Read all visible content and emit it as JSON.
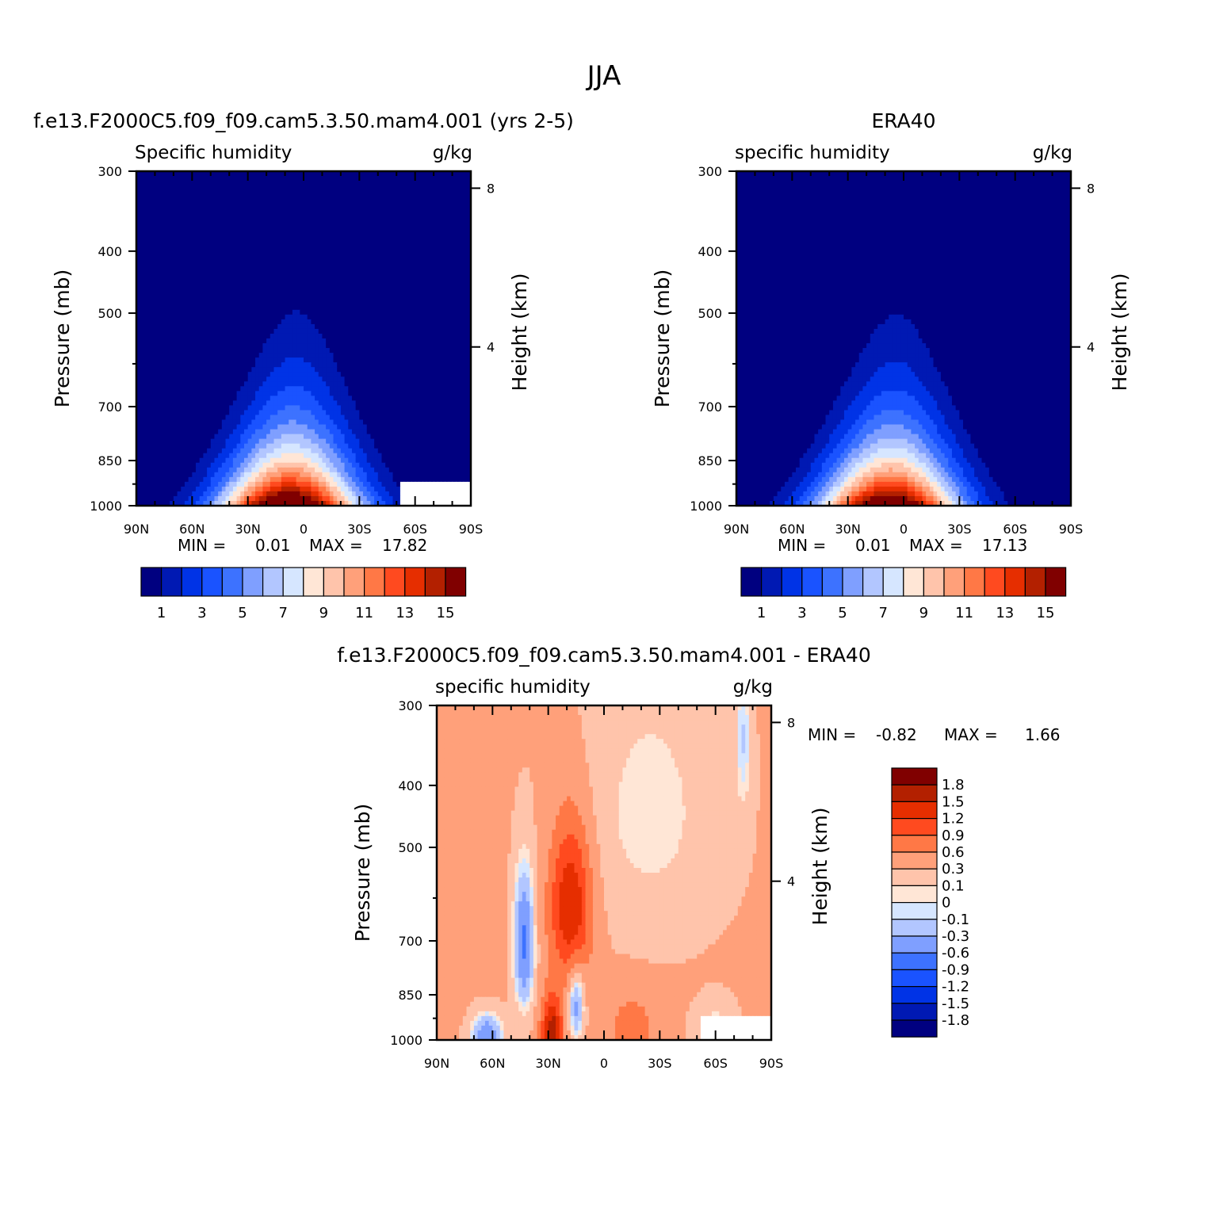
{
  "figure_title": "JJA",
  "chart_data": [
    {
      "type": "contour",
      "case_title": "f.e13.F2000C5.f09_f09.cam5.3.50.mam4.001 (yrs 2-5)",
      "left_string": "Specific humidity",
      "right_string": "g/kg",
      "ylabel": "Pressure (mb)",
      "ylabel_right": "Height (km)",
      "x_ticklabels": [
        "90N",
        "60N",
        "30N",
        "0",
        "30S",
        "60S",
        "90S"
      ],
      "x_ticks": [
        90,
        60,
        30,
        0,
        -30,
        -60,
        -90
      ],
      "xlim": [
        90,
        -90
      ],
      "y_ticklabels": [
        "300",
        "400",
        "500",
        "700",
        "850",
        "1000"
      ],
      "y_ticks": [
        300,
        400,
        500,
        700,
        850,
        1000
      ],
      "ylim": [
        1000,
        300
      ],
      "y_log": true,
      "height_ticklabels": [
        "8",
        "4"
      ],
      "height_ticks": [
        8,
        4
      ],
      "min_label": "MIN =",
      "min_value": "0.01",
      "max_label": "MAX =",
      "max_value": "17.82",
      "field_max": 17.82,
      "missing_south_poleward_of": -51,
      "colorbar_labels": [
        "1",
        "3",
        "5",
        "7",
        "9",
        "11",
        "13",
        "15"
      ]
    },
    {
      "type": "contour",
      "case_title": "ERA40",
      "left_string": "specific humidity",
      "right_string": "g/kg",
      "ylabel": "Pressure (mb)",
      "ylabel_right": "Height (km)",
      "x_ticklabels": [
        "90N",
        "60N",
        "30N",
        "0",
        "30S",
        "60S",
        "90S"
      ],
      "x_ticks": [
        90,
        60,
        30,
        0,
        -30,
        -60,
        -90
      ],
      "xlim": [
        90,
        -90
      ],
      "y_ticklabels": [
        "300",
        "400",
        "500",
        "700",
        "850",
        "1000"
      ],
      "y_ticks": [
        300,
        400,
        500,
        700,
        850,
        1000
      ],
      "ylim": [
        1000,
        300
      ],
      "y_log": true,
      "height_ticklabels": [
        "8",
        "4"
      ],
      "height_ticks": [
        8,
        4
      ],
      "min_label": "MIN =",
      "min_value": "0.01",
      "max_label": "MAX =",
      "max_value": "17.13",
      "field_max": 17.13,
      "colorbar_labels": [
        "1",
        "3",
        "5",
        "7",
        "9",
        "11",
        "13",
        "15"
      ]
    },
    {
      "type": "contour",
      "case_title": "f.e13.F2000C5.f09_f09.cam5.3.50.mam4.001 - ERA40",
      "left_string": "specific humidity",
      "right_string": "g/kg",
      "ylabel": "Pressure (mb)",
      "ylabel_right": "Height (km)",
      "x_ticklabels": [
        "90N",
        "60N",
        "30N",
        "0",
        "30S",
        "60S",
        "90S"
      ],
      "x_ticks": [
        90,
        60,
        30,
        0,
        -30,
        -60,
        -90
      ],
      "xlim": [
        90,
        -90
      ],
      "y_ticklabels": [
        "300",
        "400",
        "500",
        "700",
        "850",
        "1000"
      ],
      "y_ticks": [
        300,
        400,
        500,
        700,
        850,
        1000
      ],
      "ylim": [
        1000,
        300
      ],
      "y_log": true,
      "height_ticklabels": [
        "8",
        "4"
      ],
      "height_ticks": [
        8,
        4
      ],
      "min_label": "MIN =",
      "min_value": "-0.82",
      "max_label": "MAX =",
      "max_value": "1.66",
      "missing_south_poleward_of": -51,
      "colorbar_labels": [
        "1.8",
        "1.5",
        "1.2",
        "0.9",
        "0.6",
        "0.3",
        "0.1",
        "0",
        "-0.1",
        "-0.3",
        "-0.6",
        "-0.9",
        "-1.2",
        "-1.5",
        "-1.8"
      ]
    }
  ],
  "colors": {
    "abs_levels": [
      "#000080",
      "#0019b3",
      "#0033e6",
      "#1a53ff",
      "#3d72ff",
      "#7f9fff",
      "#b2c6ff",
      "#d6e6ff",
      "#ffe6d6",
      "#ffc4ab",
      "#ffa07a",
      "#ff7846",
      "#ff4a1f",
      "#e62e00",
      "#b32000",
      "#800000"
    ],
    "diff_levels": [
      "#800000",
      "#b32000",
      "#e62e00",
      "#ff4a1f",
      "#ff7846",
      "#ffa07a",
      "#ffc4ab",
      "#ffe6d6",
      "#d6e6ff",
      "#b2c6ff",
      "#7f9fff",
      "#3d72ff",
      "#1a53ff",
      "#0033e6",
      "#0019b3",
      "#000080"
    ],
    "missing": "#ffffff"
  }
}
